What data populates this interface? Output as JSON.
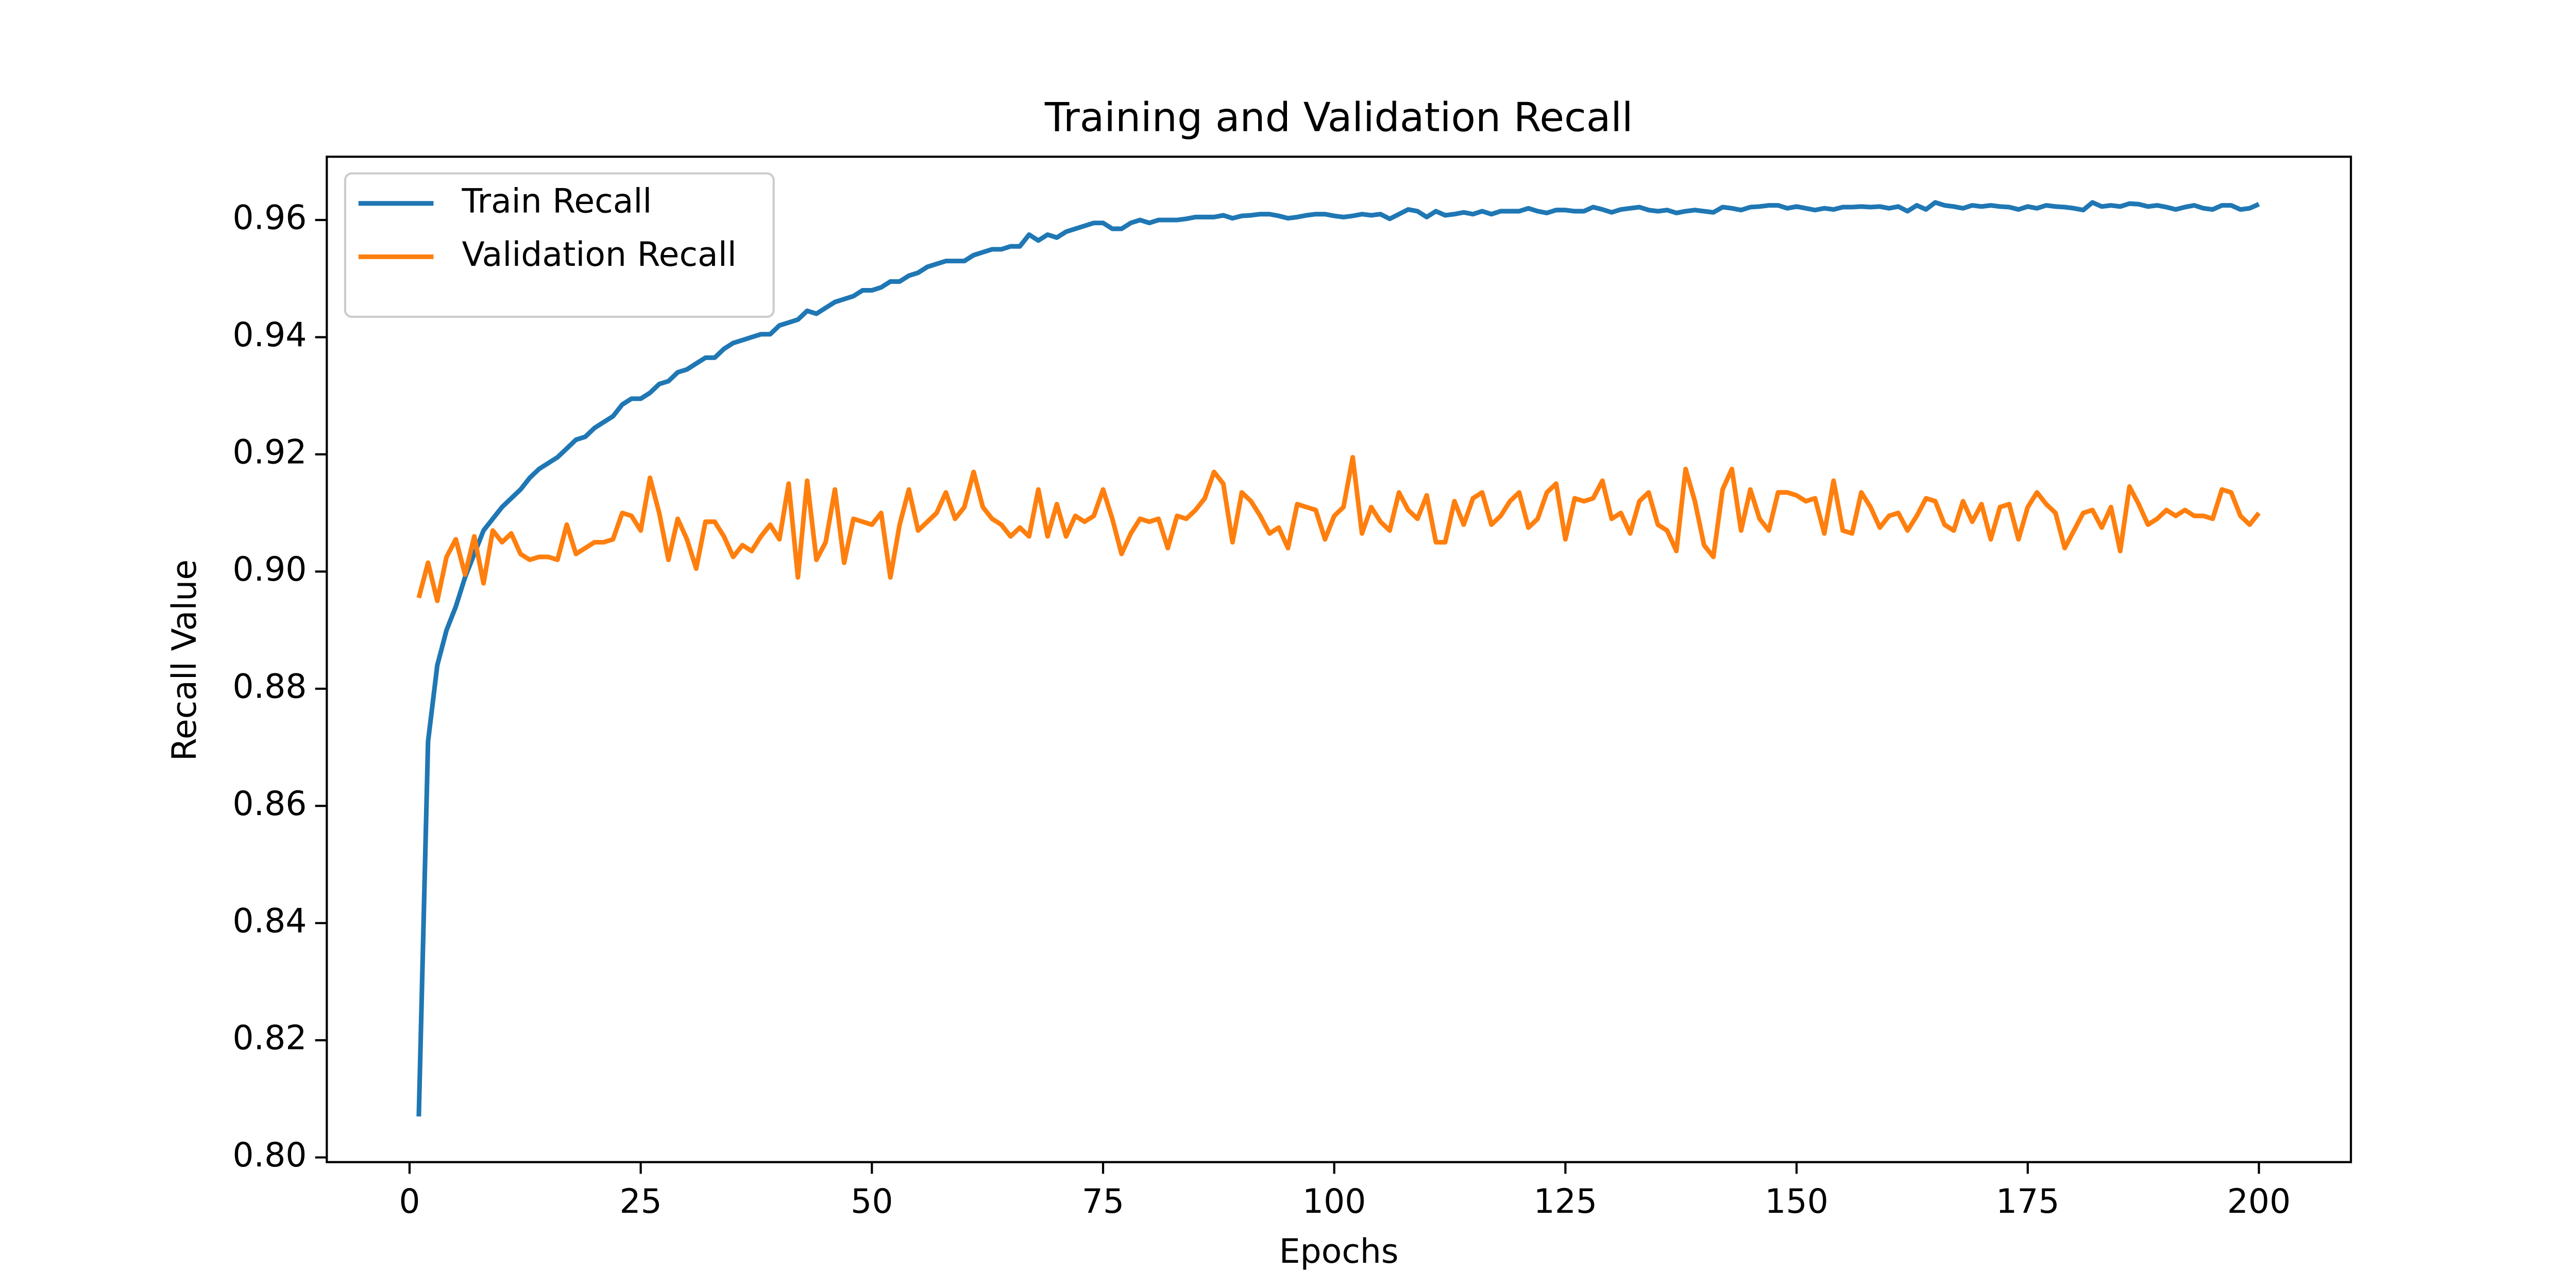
{
  "chart_data": {
    "type": "line",
    "title": "Training and Validation Recall",
    "x_label": "Epochs",
    "y_label": "Recall Value",
    "x": [
      1,
      2,
      3,
      4,
      5,
      6,
      7,
      8,
      9,
      10,
      11,
      12,
      13,
      14,
      15,
      16,
      17,
      18,
      19,
      20,
      21,
      22,
      23,
      24,
      25,
      26,
      27,
      28,
      29,
      30,
      31,
      32,
      33,
      34,
      35,
      36,
      37,
      38,
      39,
      40,
      41,
      42,
      43,
      44,
      45,
      46,
      47,
      48,
      49,
      50,
      51,
      52,
      53,
      54,
      55,
      56,
      57,
      58,
      59,
      60,
      61,
      62,
      63,
      64,
      65,
      66,
      67,
      68,
      69,
      70,
      71,
      72,
      73,
      74,
      75,
      76,
      77,
      78,
      79,
      80,
      81,
      82,
      83,
      84,
      85,
      86,
      87,
      88,
      89,
      90,
      91,
      92,
      93,
      94,
      95,
      96,
      97,
      98,
      99,
      100,
      101,
      102,
      103,
      104,
      105,
      106,
      107,
      108,
      109,
      110,
      111,
      112,
      113,
      114,
      115,
      116,
      117,
      118,
      119,
      120,
      121,
      122,
      123,
      124,
      125,
      126,
      127,
      128,
      129,
      130,
      131,
      132,
      133,
      134,
      135,
      136,
      137,
      138,
      139,
      140,
      141,
      142,
      143,
      144,
      145,
      146,
      147,
      148,
      149,
      150,
      151,
      152,
      153,
      154,
      155,
      156,
      157,
      158,
      159,
      160,
      161,
      162,
      163,
      164,
      165,
      166,
      167,
      168,
      169,
      170,
      171,
      172,
      173,
      174,
      175,
      176,
      177,
      178,
      179,
      180,
      181,
      182,
      183,
      184,
      185,
      186,
      187,
      188,
      189,
      190,
      191,
      192,
      193,
      194,
      195,
      196,
      197,
      198,
      199,
      200
    ],
    "series": [
      {
        "name": "Train Recall",
        "color": "#1f77b4",
        "values": [
          0.807,
          0.871,
          0.884,
          0.89,
          0.894,
          0.899,
          0.903,
          0.907,
          0.909,
          0.911,
          0.9125,
          0.914,
          0.916,
          0.9175,
          0.9185,
          0.9195,
          0.921,
          0.9225,
          0.923,
          0.9245,
          0.9255,
          0.9265,
          0.9285,
          0.9295,
          0.9295,
          0.9305,
          0.932,
          0.9325,
          0.934,
          0.9345,
          0.9355,
          0.9365,
          0.9365,
          0.938,
          0.939,
          0.9395,
          0.94,
          0.9405,
          0.9405,
          0.942,
          0.9425,
          0.943,
          0.9445,
          0.944,
          0.945,
          0.946,
          0.9465,
          0.947,
          0.948,
          0.948,
          0.9485,
          0.9495,
          0.9495,
          0.9505,
          0.951,
          0.952,
          0.9525,
          0.953,
          0.953,
          0.953,
          0.954,
          0.9545,
          0.955,
          0.955,
          0.9555,
          0.9555,
          0.9575,
          0.9565,
          0.9575,
          0.957,
          0.958,
          0.9585,
          0.959,
          0.9595,
          0.9595,
          0.9585,
          0.9585,
          0.9595,
          0.96,
          0.9595,
          0.96,
          0.96,
          0.96,
          0.9602,
          0.9605,
          0.9605,
          0.9605,
          0.9608,
          0.9603,
          0.9607,
          0.9608,
          0.961,
          0.961,
          0.9607,
          0.9603,
          0.9605,
          0.9608,
          0.961,
          0.961,
          0.9607,
          0.9605,
          0.9607,
          0.961,
          0.9608,
          0.961,
          0.9602,
          0.961,
          0.9618,
          0.9615,
          0.9605,
          0.9615,
          0.9608,
          0.961,
          0.9613,
          0.961,
          0.9615,
          0.961,
          0.9615,
          0.9615,
          0.9615,
          0.962,
          0.9615,
          0.9612,
          0.9617,
          0.9617,
          0.9615,
          0.9615,
          0.9622,
          0.9618,
          0.9613,
          0.9618,
          0.962,
          0.9622,
          0.9617,
          0.9615,
          0.9617,
          0.9612,
          0.9615,
          0.9617,
          0.9615,
          0.9613,
          0.9622,
          0.962,
          0.9617,
          0.9622,
          0.9623,
          0.9625,
          0.9625,
          0.962,
          0.9623,
          0.962,
          0.9617,
          0.962,
          0.9618,
          0.9622,
          0.9622,
          0.9623,
          0.9622,
          0.9623,
          0.962,
          0.9623,
          0.9615,
          0.9625,
          0.9618,
          0.963,
          0.9625,
          0.9623,
          0.962,
          0.9625,
          0.9623,
          0.9625,
          0.9623,
          0.9622,
          0.9618,
          0.9623,
          0.962,
          0.9625,
          0.9623,
          0.9622,
          0.962,
          0.9617,
          0.963,
          0.9623,
          0.9625,
          0.9623,
          0.9628,
          0.9627,
          0.9623,
          0.9625,
          0.9622,
          0.9618,
          0.9622,
          0.9625,
          0.962,
          0.9618,
          0.9625,
          0.9625,
          0.9618,
          0.962,
          0.9627
        ]
      },
      {
        "name": "Validation Recall",
        "color": "#ff7f0e",
        "values": [
          0.8955,
          0.9015,
          0.895,
          0.9025,
          0.9055,
          0.8995,
          0.906,
          0.898,
          0.907,
          0.905,
          0.9065,
          0.903,
          0.902,
          0.9025,
          0.9025,
          0.902,
          0.908,
          0.903,
          0.904,
          0.905,
          0.905,
          0.9055,
          0.91,
          0.9095,
          0.907,
          0.916,
          0.91,
          0.902,
          0.909,
          0.9055,
          0.9005,
          0.9085,
          0.9085,
          0.906,
          0.9025,
          0.9045,
          0.9035,
          0.906,
          0.908,
          0.9055,
          0.915,
          0.899,
          0.9155,
          0.902,
          0.905,
          0.914,
          0.9015,
          0.909,
          0.9085,
          0.908,
          0.91,
          0.899,
          0.908,
          0.914,
          0.907,
          0.9085,
          0.91,
          0.9135,
          0.909,
          0.911,
          0.917,
          0.911,
          0.909,
          0.908,
          0.906,
          0.9075,
          0.906,
          0.914,
          0.906,
          0.9115,
          0.906,
          0.9095,
          0.9085,
          0.9095,
          0.914,
          0.909,
          0.903,
          0.9065,
          0.909,
          0.9085,
          0.909,
          0.904,
          0.9095,
          0.909,
          0.9105,
          0.9125,
          0.917,
          0.915,
          0.905,
          0.9135,
          0.912,
          0.9095,
          0.9065,
          0.9075,
          0.904,
          0.9115,
          0.911,
          0.9105,
          0.9055,
          0.9095,
          0.911,
          0.9195,
          0.9065,
          0.911,
          0.9085,
          0.907,
          0.9135,
          0.9105,
          0.909,
          0.913,
          0.905,
          0.905,
          0.912,
          0.908,
          0.9125,
          0.9135,
          0.908,
          0.9095,
          0.912,
          0.9135,
          0.9075,
          0.909,
          0.9135,
          0.915,
          0.9055,
          0.9125,
          0.912,
          0.9125,
          0.9155,
          0.909,
          0.91,
          0.9065,
          0.912,
          0.9135,
          0.908,
          0.907,
          0.9035,
          0.9175,
          0.912,
          0.9045,
          0.9025,
          0.914,
          0.9175,
          0.907,
          0.914,
          0.909,
          0.907,
          0.9135,
          0.9135,
          0.913,
          0.912,
          0.9125,
          0.9065,
          0.9155,
          0.907,
          0.9065,
          0.9135,
          0.911,
          0.9075,
          0.9095,
          0.91,
          0.907,
          0.9095,
          0.9125,
          0.912,
          0.908,
          0.907,
          0.912,
          0.9085,
          0.9115,
          0.9055,
          0.911,
          0.9115,
          0.9055,
          0.911,
          0.9135,
          0.9115,
          0.91,
          0.904,
          0.907,
          0.91,
          0.9105,
          0.9075,
          0.911,
          0.9035,
          0.9145,
          0.9115,
          0.908,
          0.909,
          0.9105,
          0.9095,
          0.9105,
          0.9095,
          0.9095,
          0.909,
          0.914,
          0.9135,
          0.9095,
          0.908,
          0.91
        ]
      }
    ],
    "xlim": [
      -8.95,
      209.95
    ],
    "xticks": [
      0,
      25,
      50,
      75,
      100,
      125,
      150,
      175,
      200
    ],
    "ylim": [
      0.7992,
      0.9708
    ],
    "yticks": [
      {
        "value": 0.8,
        "label": "0.80"
      },
      0.82,
      0.84,
      0.86,
      0.88,
      {
        "value": 0.9,
        "label": "0.90"
      },
      0.92,
      0.94,
      0.96
    ],
    "grid": false,
    "legend": "upper left"
  }
}
